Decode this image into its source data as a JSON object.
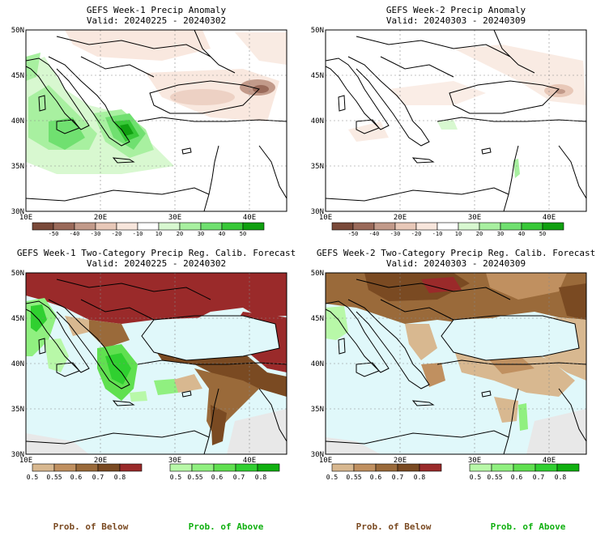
{
  "panels": [
    {
      "id": "w1-anom",
      "title": "GEFS Week-1 Precip Anomaly",
      "valid": "Valid: 20240225 - 20240302",
      "type": "anomaly",
      "lat_labels": [
        "50N",
        "45N",
        "40N",
        "35N",
        "30N"
      ],
      "lon_labels": [
        "10E",
        "20E",
        "30E",
        "40E"
      ],
      "colorbar_labels": [
        "-50",
        "-40",
        "-30",
        "-20",
        "-10",
        "10",
        "20",
        "30",
        "40",
        "50"
      ]
    },
    {
      "id": "w2-anom",
      "title": "GEFS Week-2 Precip Anomaly",
      "valid": "Valid: 20240303 - 20240309",
      "type": "anomaly",
      "lat_labels": [
        "50N",
        "45N",
        "40N",
        "35N",
        "30N"
      ],
      "lon_labels": [
        "10E",
        "20E",
        "30E",
        "40E"
      ],
      "colorbar_labels": [
        "-50",
        "-40",
        "-30",
        "-20",
        "-10",
        "10",
        "20",
        "30",
        "40",
        "50"
      ]
    },
    {
      "id": "w1-prob",
      "title": "GEFS Week-1 Two-Category Precip Reg. Calib. Forecast",
      "valid": "Valid: 20240225 - 20240302",
      "type": "prob",
      "lat_labels": [
        "50N",
        "45N",
        "40N",
        "35N",
        "30N"
      ],
      "lon_labels": [
        "10E",
        "20E",
        "30E",
        "40E"
      ],
      "below_labels": [
        "0.5",
        "0.55",
        "0.6",
        "0.7",
        "0.8"
      ],
      "above_labels": [
        "0.5",
        "0.55",
        "0.6",
        "0.7",
        "0.8"
      ]
    },
    {
      "id": "w2-prob",
      "title": "GEFS Week-2 Two-Category Precip Reg. Calib. Forecast",
      "valid": "Valid: 20240303 - 20240309",
      "type": "prob",
      "lat_labels": [
        "50N",
        "45N",
        "40N",
        "35N",
        "30N"
      ],
      "lon_labels": [
        "10E",
        "20E",
        "30E",
        "40E"
      ],
      "below_labels": [
        "0.5",
        "0.55",
        "0.6",
        "0.7",
        "0.8"
      ],
      "above_labels": [
        "0.5",
        "0.55",
        "0.6",
        "0.7",
        "0.8"
      ]
    }
  ],
  "legend": {
    "below_left": "Prob. of Below",
    "above_left": "Prob. of Above",
    "below_right": "Prob. of Below",
    "above_right": "Prob. of Above"
  },
  "colors": {
    "anomaly_scale": [
      "#7a4a3a",
      "#9a6a5a",
      "#c29a8a",
      "#e8c8b8",
      "#f8e6dc",
      "#ffffff",
      "#d8f8d0",
      "#a8f0a0",
      "#70e070",
      "#38c838",
      "#10a010"
    ],
    "below_scale": [
      "#d8b890",
      "#c09060",
      "#9a6a3a",
      "#7a4a22",
      "#9a2a2a"
    ],
    "above_scale": [
      "#b8f8a8",
      "#90f080",
      "#60e050",
      "#30d030",
      "#10b010"
    ],
    "sea_fill": "#e0f8fa",
    "missing_fill": "#e8e8e8",
    "below_label_color": "#7a4a22",
    "above_label_color": "#10b010"
  }
}
